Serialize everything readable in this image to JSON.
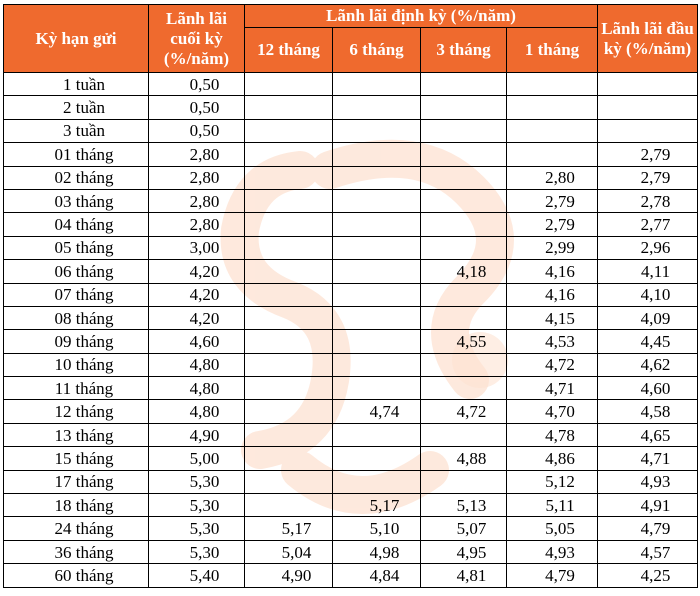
{
  "table": {
    "headers": {
      "term": "Kỳ hạn gửi",
      "end_of_term": "Lãnh lãi cuối kỳ (%/năm)",
      "periodic": "Lãnh lãi định kỳ (%/năm)",
      "periodic_12": "12 tháng",
      "periodic_6": "6 tháng",
      "periodic_3": "3 tháng",
      "periodic_1": "1 tháng",
      "upfront": "Lãnh lãi đầu kỳ (%/năm)"
    },
    "rows": [
      {
        "term": "1 tuần",
        "end": "0,50",
        "p12": "",
        "p6": "",
        "p3": "",
        "p1": "",
        "upfront": ""
      },
      {
        "term": "2 tuần",
        "end": "0,50",
        "p12": "",
        "p6": "",
        "p3": "",
        "p1": "",
        "upfront": ""
      },
      {
        "term": "3 tuần",
        "end": "0,50",
        "p12": "",
        "p6": "",
        "p3": "",
        "p1": "",
        "upfront": ""
      },
      {
        "term": "01 tháng",
        "end": "2,80",
        "p12": "",
        "p6": "",
        "p3": "",
        "p1": "",
        "upfront": "2,79"
      },
      {
        "term": "02 tháng",
        "end": "2,80",
        "p12": "",
        "p6": "",
        "p3": "",
        "p1": "2,80",
        "upfront": "2,79"
      },
      {
        "term": "03 tháng",
        "end": "2,80",
        "p12": "",
        "p6": "",
        "p3": "",
        "p1": "2,79",
        "upfront": "2,78"
      },
      {
        "term": "04 tháng",
        "end": "2,80",
        "p12": "",
        "p6": "",
        "p3": "",
        "p1": "2,79",
        "upfront": "2,77"
      },
      {
        "term": "05 tháng",
        "end": "3,00",
        "p12": "",
        "p6": "",
        "p3": "",
        "p1": "2,99",
        "upfront": "2,96"
      },
      {
        "term": "06 tháng",
        "end": "4,20",
        "p12": "",
        "p6": "",
        "p3": "4,18",
        "p1": "4,16",
        "upfront": "4,11"
      },
      {
        "term": "07 tháng",
        "end": "4,20",
        "p12": "",
        "p6": "",
        "p3": "",
        "p1": "4,16",
        "upfront": "4,10"
      },
      {
        "term": "08 tháng",
        "end": "4,20",
        "p12": "",
        "p6": "",
        "p3": "",
        "p1": "4,15",
        "upfront": "4,09"
      },
      {
        "term": "09 tháng",
        "end": "4,60",
        "p12": "",
        "p6": "",
        "p3": "4,55",
        "p1": "4,53",
        "upfront": "4,45"
      },
      {
        "term": "10 tháng",
        "end": "4,80",
        "p12": "",
        "p6": "",
        "p3": "",
        "p1": "4,72",
        "upfront": "4,62"
      },
      {
        "term": "11 tháng",
        "end": "4,80",
        "p12": "",
        "p6": "",
        "p3": "",
        "p1": "4,71",
        "upfront": "4,60"
      },
      {
        "term": "12 tháng",
        "end": "4,80",
        "p12": "",
        "p6": "4,74",
        "p3": "4,72",
        "p1": "4,70",
        "upfront": "4,58"
      },
      {
        "term": "13 tháng",
        "end": "4,90",
        "p12": "",
        "p6": "",
        "p3": "",
        "p1": "4,78",
        "upfront": "4,65"
      },
      {
        "term": "15 tháng",
        "end": "5,00",
        "p12": "",
        "p6": "",
        "p3": "4,88",
        "p1": "4,86",
        "upfront": "4,71"
      },
      {
        "term": "17 tháng",
        "end": "5,30",
        "p12": "",
        "p6": "",
        "p3": "",
        "p1": "5,12",
        "upfront": "4,93"
      },
      {
        "term": "18 tháng",
        "end": "5,30",
        "p12": "",
        "p6": "5,17",
        "p3": "5,13",
        "p1": "5,11",
        "upfront": "4,91"
      },
      {
        "term": "24 tháng",
        "end": "5,30",
        "p12": "5,17",
        "p6": "5,10",
        "p3": "5,07",
        "p1": "5,05",
        "upfront": "4,79"
      },
      {
        "term": "36 tháng",
        "end": "5,30",
        "p12": "5,04",
        "p6": "4,98",
        "p3": "4,95",
        "p1": "4,93",
        "upfront": "4,57"
      },
      {
        "term": "60 tháng",
        "end": "5,40",
        "p12": "4,90",
        "p6": "4,84",
        "p3": "4,81",
        "p1": "4,79",
        "upfront": "4,25"
      }
    ]
  },
  "colors": {
    "header_background": "#ef6a2e",
    "header_text": "#ffffff",
    "watermark": "#fde2d2"
  },
  "watermark": {
    "icon": "bank-logo-watermark-icon"
  }
}
